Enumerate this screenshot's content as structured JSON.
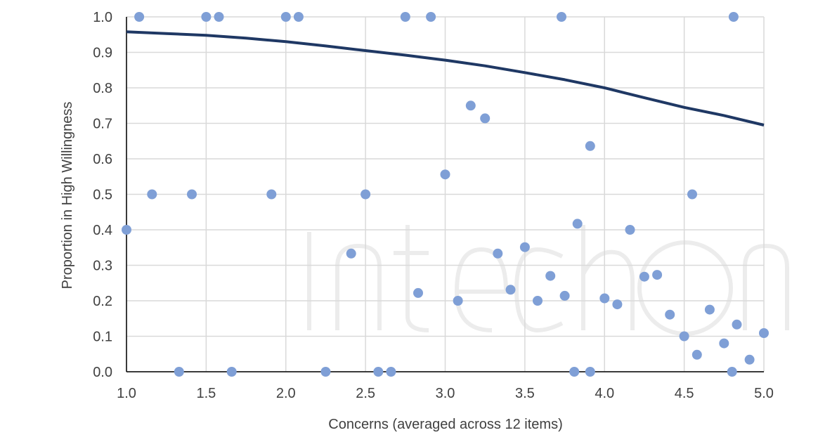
{
  "chart_data": {
    "type": "scatter",
    "xlabel": "Concerns (averaged  across 12 items)",
    "ylabel": "Proportion in High Willingness",
    "xlim": [
      1.0,
      5.0
    ],
    "ylim": [
      0.0,
      1.0
    ],
    "x_ticks": [
      "1.0",
      "1.5",
      "2.0",
      "2.5",
      "3.0",
      "3.5",
      "4.0",
      "4.5",
      "5.0"
    ],
    "y_ticks": [
      "0.0",
      "0.1",
      "0.2",
      "0.3",
      "0.4",
      "0.5",
      "0.6",
      "0.7",
      "0.8",
      "0.9",
      "1.0"
    ],
    "grid": true,
    "colors": {
      "points": "#7f9fd6",
      "curve": "#1f3864",
      "grid": "#d9d9d9"
    },
    "series": [
      {
        "type": "scatter",
        "x": [
          1.0,
          1.08,
          1.16,
          1.33,
          1.41,
          1.5,
          1.58,
          1.66,
          1.91,
          2.0,
          2.08,
          2.25,
          2.41,
          2.5,
          2.58,
          2.66,
          2.75,
          2.83,
          2.91,
          3.0,
          3.08,
          3.16,
          3.25,
          3.33,
          3.41,
          3.5,
          3.58,
          3.66,
          3.73,
          3.75,
          3.81,
          3.83,
          3.91,
          3.91,
          4.0,
          4.08,
          4.16,
          4.25,
          4.33,
          4.41,
          4.5,
          4.55,
          4.58,
          4.66,
          4.75,
          4.8,
          4.81,
          4.83,
          4.91,
          5.0
        ],
        "values": [
          0.4,
          1.0,
          0.5,
          0.0,
          0.5,
          1.0,
          1.0,
          0.0,
          0.5,
          1.0,
          1.0,
          0.0,
          0.333,
          0.5,
          0.0,
          0.0,
          1.0,
          0.222,
          1.0,
          0.556,
          0.2,
          0.75,
          0.714,
          0.333,
          0.231,
          0.351,
          0.2,
          0.27,
          1.0,
          0.214,
          0.0,
          0.417,
          0.0,
          0.636,
          0.207,
          0.19,
          0.4,
          0.268,
          0.273,
          0.161,
          0.1,
          0.5,
          0.048,
          0.175,
          0.08,
          0.0,
          1.0,
          0.133,
          0.034,
          0.109
        ]
      },
      {
        "type": "line",
        "x": [
          1.0,
          1.25,
          1.5,
          1.75,
          2.0,
          2.25,
          2.5,
          2.75,
          3.0,
          3.25,
          3.5,
          3.75,
          4.0,
          4.25,
          4.5,
          4.75,
          5.0
        ],
        "values": [
          0.958,
          0.953,
          0.948,
          0.94,
          0.93,
          0.918,
          0.905,
          0.892,
          0.878,
          0.862,
          0.843,
          0.823,
          0.8,
          0.772,
          0.745,
          0.722,
          0.695
        ]
      }
    ]
  },
  "watermark": {
    "text": "IntechOpen"
  }
}
